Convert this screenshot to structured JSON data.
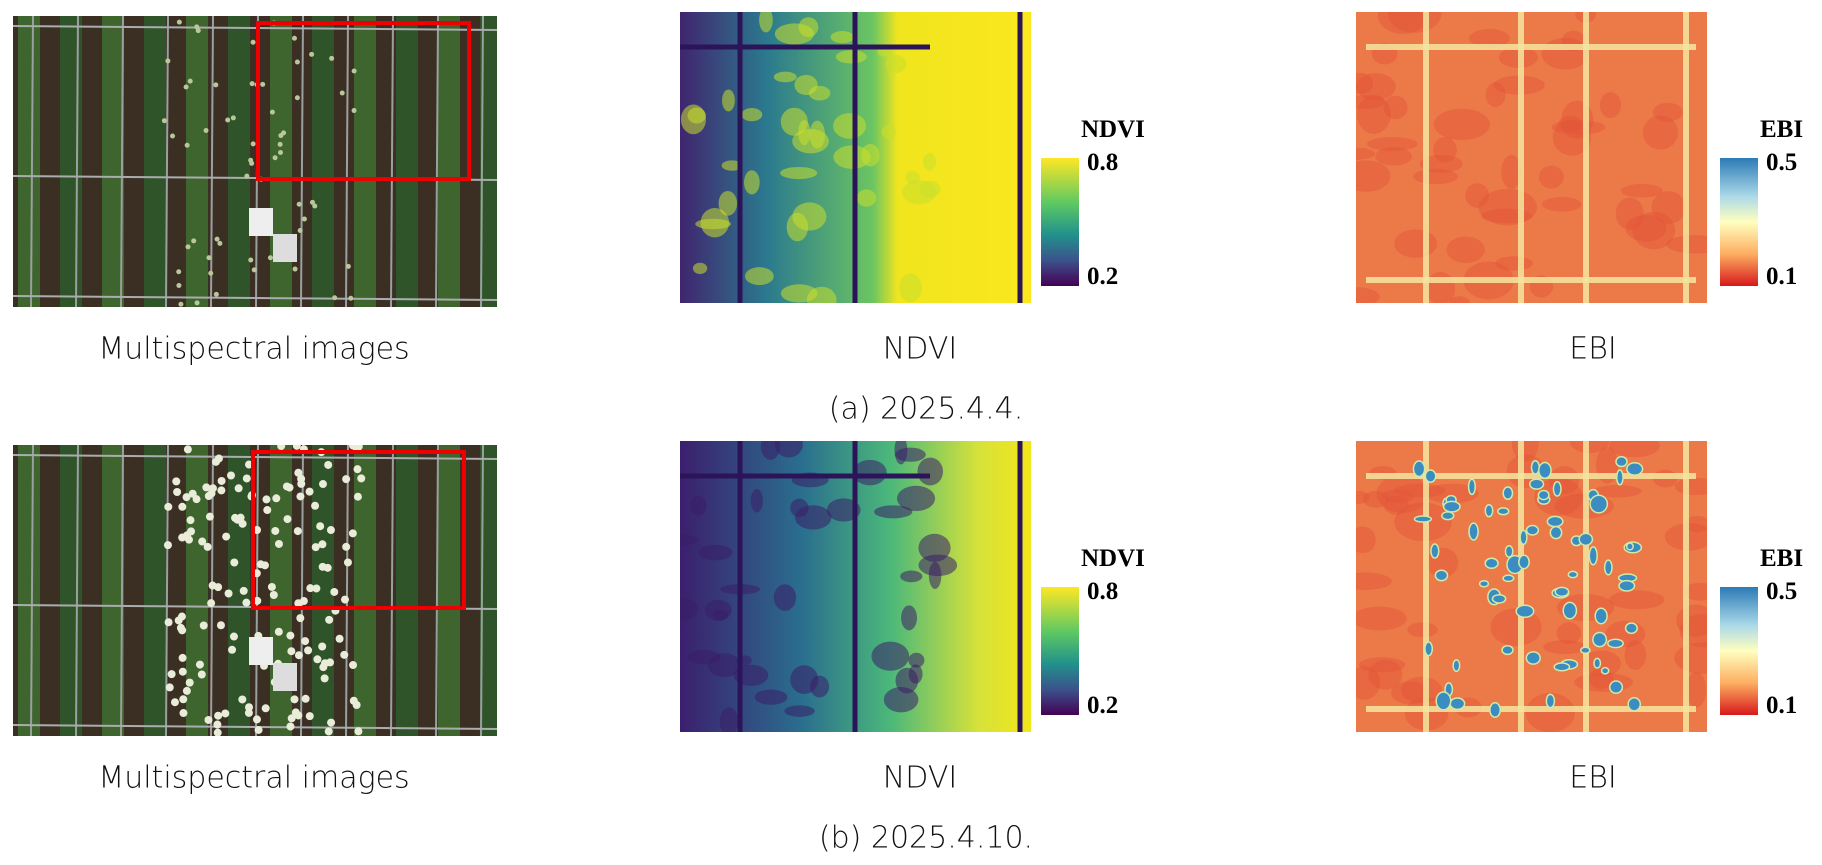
{
  "panels": [
    {
      "label": "(a) 2025.4.4.",
      "images": [
        {
          "caption": "Multispectral images"
        },
        {
          "caption": "NDVI",
          "colorbar": {
            "title": "NDVI",
            "max": "0.8",
            "min": "0.2"
          }
        },
        {
          "caption": "EBI",
          "colorbar": {
            "title": "EBI",
            "max": "0.5",
            "min": "0.1"
          }
        }
      ]
    },
    {
      "label": "(b) 2025.4.10.",
      "images": [
        {
          "caption": "Multispectral images"
        },
        {
          "caption": "NDVI",
          "colorbar": {
            "title": "NDVI",
            "max": "0.8",
            "min": "0.2"
          }
        },
        {
          "caption": "EBI",
          "colorbar": {
            "title": "EBI",
            "max": "0.5",
            "min": "0.1"
          }
        }
      ]
    }
  ]
}
